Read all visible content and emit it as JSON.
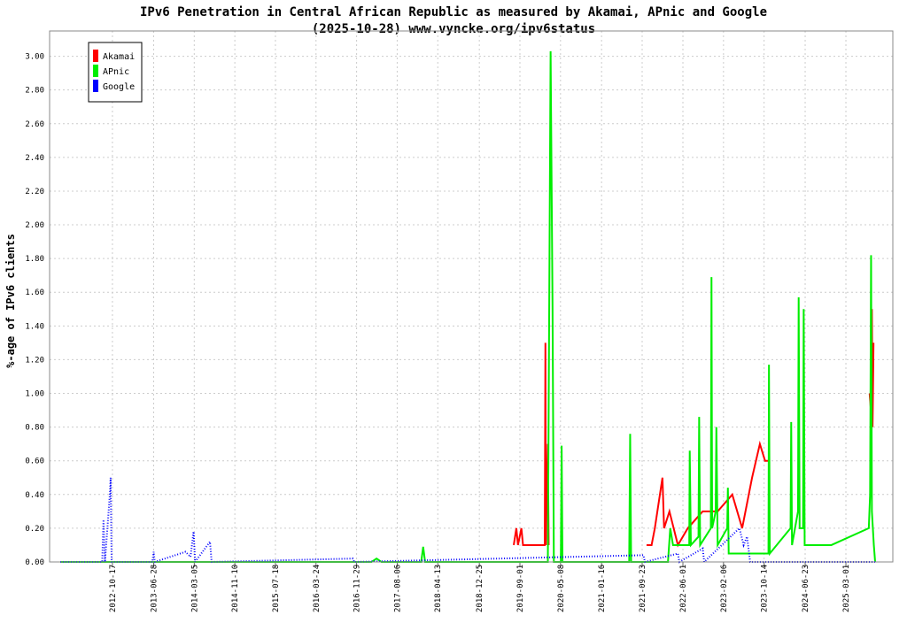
{
  "chart_data": {
    "type": "line",
    "title": "IPv6 Penetration in Central African Republic as measured by Akamai, APnic and Google",
    "subtitle": "(2025-10-28) www.vyncke.org/ipv6status",
    "y_label": "%-age of IPv6 clients",
    "xlim": [
      "2011-09-26",
      "2025-12-15"
    ],
    "xticks": [
      "2012-10-17",
      "2013-06-28",
      "2014-03-05",
      "2014-11-10",
      "2015-07-18",
      "2016-03-24",
      "2016-11-29",
      "2017-08-06",
      "2018-04-13",
      "2018-12-25",
      "2019-09-01",
      "2020-05-08",
      "2021-01-16",
      "2021-09-23",
      "2022-06-01",
      "2023-02-06",
      "2023-10-14",
      "2024-06-23",
      "2025-03-01"
    ],
    "ylim": [
      0,
      3.15
    ],
    "yticks": [
      {
        "value": 0,
        "label": "0.00"
      },
      {
        "value": 0.2,
        "label": "0.20"
      },
      {
        "value": 0.4,
        "label": "0.40"
      },
      {
        "value": 0.6,
        "label": "0.60"
      },
      {
        "value": 0.8,
        "label": "0.80"
      },
      {
        "value": 1,
        "label": "1.00"
      },
      {
        "value": 1.2,
        "label": "1.20"
      },
      {
        "value": 1.4,
        "label": "1.40"
      },
      {
        "value": 1.6,
        "label": "1.60"
      },
      {
        "value": 1.8,
        "label": "1.80"
      },
      {
        "value": 2,
        "label": "2.00"
      },
      {
        "value": 2.2,
        "label": "2.20"
      },
      {
        "value": 2.4,
        "label": "2.40"
      },
      {
        "value": 2.6,
        "label": "2.60"
      },
      {
        "value": 2.8,
        "label": "2.80"
      },
      {
        "value": 3,
        "label": "3.00"
      }
    ],
    "grid": true,
    "legend": "top-left",
    "series": [
      {
        "name": "Akamai",
        "color": "#ff0000",
        "line_style": "solid",
        "x": [
          "2019-07-25",
          "2019-08-10",
          "2019-08-20",
          "2019-09-10",
          "2019-09-20",
          "2020-02-01",
          "2020-02-05",
          "2020-02-08",
          "2020-02-20",
          "2020-02-25",
          "2021-01-01",
          "2021-10-20",
          "2021-11-20",
          "2021-12-10",
          "2022-01-26",
          "2022-02-05",
          "2022-03-10",
          "2022-05-01",
          "2022-07-01",
          "2022-10-01",
          "2023-01-01",
          "2023-04-01",
          "2023-06-01",
          "2023-08-01",
          "2023-09-18",
          "2023-10-20",
          "2023-11-08",
          "2024-06-01",
          "2025-07-25",
          "2025-08-02",
          "2025-08-08",
          "2025-08-12",
          "2025-08-18"
        ],
        "values": [
          0.1,
          0.2,
          0.1,
          0.2,
          0.1,
          0.1,
          1.3,
          0.1,
          0.7,
          0.1,
          null,
          0.1,
          0.1,
          0.2,
          0.5,
          0.2,
          0.3,
          0.1,
          0.2,
          0.3,
          0.3,
          0.4,
          0.2,
          0.5,
          0.7,
          0.6,
          0.6,
          null,
          1.0,
          0.9,
          1.5,
          0.8,
          1.3
        ]
      },
      {
        "name": "APnic",
        "color": "#00ee00",
        "line_style": "solid",
        "x": [
          "2011-12-01",
          "2017-03-01",
          "2017-04-01",
          "2017-05-01",
          "2018-01-01",
          "2018-01-13",
          "2018-01-25",
          "2020-02-20",
          "2020-03-08",
          "2020-03-20",
          "2020-03-28",
          "2020-05-10",
          "2020-05-15",
          "2020-05-20",
          "2021-07-05",
          "2021-07-11",
          "2021-07-17",
          "2022-03-01",
          "2022-03-15",
          "2022-04-01",
          "2022-07-10",
          "2022-07-13",
          "2022-07-20",
          "2022-09-05",
          "2022-09-09",
          "2022-09-15",
          "2022-11-20",
          "2022-11-24",
          "2022-11-28",
          "2022-12-20",
          "2022-12-24",
          "2023-01-01",
          "2023-03-01",
          "2023-03-05",
          "2023-03-10",
          "2023-11-10",
          "2023-11-13",
          "2023-11-18",
          "2024-03-25",
          "2024-03-29",
          "2024-04-03",
          "2024-05-10",
          "2024-05-14",
          "2024-05-20",
          "2024-06-10",
          "2024-06-14",
          "2024-06-20",
          "2024-12-01",
          "2025-07-20",
          "2025-07-28",
          "2025-08-03",
          "2025-08-08",
          "2025-08-20",
          "2025-08-28"
        ],
        "values": [
          0,
          0,
          0.02,
          0,
          0,
          0.09,
          0,
          0,
          3.03,
          1.5,
          0,
          0,
          0.69,
          0,
          0,
          0.76,
          0,
          0,
          0.2,
          0.1,
          0.1,
          0.66,
          0.1,
          0.15,
          0.86,
          0.1,
          0.2,
          1.69,
          0.2,
          0.3,
          0.8,
          0.1,
          0.2,
          0.44,
          0.05,
          0.05,
          1.17,
          0.05,
          0.2,
          0.83,
          0.1,
          0.3,
          1.57,
          0.2,
          0.2,
          1.5,
          0.1,
          0.1,
          0.2,
          0.4,
          1.82,
          0.3,
          0.1,
          0
        ]
      },
      {
        "name": "Google",
        "color": "#0000ff",
        "line_style": "dotted",
        "x": [
          "2011-12-01",
          "2012-08-15",
          "2012-08-23",
          "2012-09-01",
          "2012-10-01",
          "2012-10-06",
          "2012-10-12",
          "2013-06-20",
          "2013-06-28",
          "2013-07-05",
          "2014-01-10",
          "2014-02-10",
          "2014-03-01",
          "2014-03-10",
          "2014-06-10",
          "2014-06-20",
          "2016-11-05",
          "2016-11-15",
          "2021-10-01",
          "2021-10-10",
          "2022-05-01",
          "2022-05-10",
          "2022-10-01",
          "2022-10-10",
          "2023-05-15",
          "2023-06-10",
          "2023-07-01",
          "2023-07-20",
          "2025-09-01"
        ],
        "values": [
          0,
          0,
          0.25,
          0,
          0.4,
          0.5,
          0,
          0,
          0.06,
          0,
          0.06,
          0.03,
          0.18,
          0,
          0.12,
          0,
          0.02,
          0,
          0.04,
          0,
          0.05,
          0,
          0.08,
          0,
          0.2,
          0.1,
          0.15,
          0,
          0
        ]
      }
    ]
  }
}
